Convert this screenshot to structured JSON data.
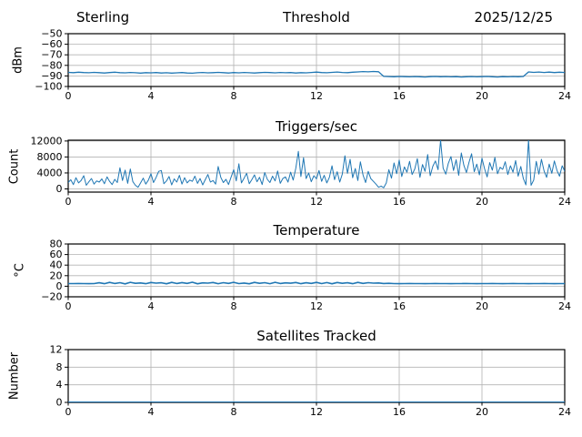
{
  "figure": {
    "background": "#ffffff",
    "line_color": "#1f77b4",
    "grid_color": "#b3b3b3",
    "spine_color": "#000000"
  },
  "chart_data": [
    {
      "type": "line",
      "title_left": "Sterling",
      "title": "Threshold",
      "title_right": "2025/12/25",
      "ylabel": "dBm",
      "xlabel": "",
      "xlim": [
        0,
        24
      ],
      "ylim": [
        -100,
        -50
      ],
      "xticks": [
        0,
        4,
        8,
        12,
        16,
        20,
        24
      ],
      "yticks": [
        -100,
        -90,
        -80,
        -70,
        -60,
        -50
      ],
      "grid": true,
      "line_color": "#1f77b4",
      "x_start": 0,
      "x_step": 0.25,
      "y": [
        -86.6,
        -86.9,
        -86.5,
        -86.8,
        -87.0,
        -86.6,
        -86.9,
        -87.2,
        -86.8,
        -86.5,
        -86.9,
        -87.1,
        -86.7,
        -87.0,
        -87.3,
        -86.9,
        -87.1,
        -86.8,
        -87.2,
        -87.0,
        -87.3,
        -87.1,
        -86.8,
        -87.2,
        -87.4,
        -87.0,
        -86.7,
        -87.1,
        -86.9,
        -86.6,
        -86.9,
        -87.2,
        -86.8,
        -87.1,
        -86.7,
        -87.0,
        -87.2,
        -86.9,
        -86.6,
        -86.8,
        -87.1,
        -86.7,
        -87.0,
        -86.8,
        -87.2,
        -86.9,
        -87.1,
        -86.7,
        -86.4,
        -86.8,
        -87.0,
        -86.6,
        -86.3,
        -86.7,
        -86.9,
        -86.5,
        -86.2,
        -85.9,
        -86.1,
        -85.8,
        -86.0,
        -90.4,
        -90.6,
        -90.8,
        -90.5,
        -90.7,
        -90.9,
        -90.6,
        -90.8,
        -91.0,
        -90.7,
        -90.5,
        -90.8,
        -90.6,
        -90.9,
        -90.7,
        -91.0,
        -90.8,
        -90.6,
        -90.9,
        -90.7,
        -90.5,
        -90.8,
        -91.0,
        -90.7,
        -90.9,
        -90.6,
        -90.8,
        -90.5,
        -86.2,
        -86.6,
        -86.3,
        -86.7,
        -86.4,
        -86.8,
        -86.5,
        -86.7
      ]
    },
    {
      "type": "line",
      "title": "Triggers/sec",
      "ylabel": "Count",
      "xlabel": "",
      "xlim": [
        0,
        24
      ],
      "ylim": [
        -800,
        12200
      ],
      "xticks": [
        0,
        4,
        8,
        12,
        16,
        20,
        24
      ],
      "yticks": [
        0,
        4000,
        8000,
        12000
      ],
      "grid": true,
      "line_color": "#1f77b4",
      "x_start": 0,
      "x_step": 0.125,
      "y": [
        1600,
        2300,
        1100,
        2800,
        1500,
        2100,
        3300,
        900,
        1800,
        2600,
        1200,
        2000,
        1700,
        2500,
        1300,
        3000,
        1900,
        1100,
        2400,
        1600,
        5300,
        2100,
        4700,
        1400,
        5000,
        1800,
        900,
        400,
        1500,
        2700,
        1200,
        2200,
        3800,
        1600,
        2900,
        4400,
        4600,
        1300,
        2000,
        3100,
        1000,
        2500,
        1700,
        3400,
        1200,
        2800,
        1500,
        2200,
        1900,
        3200,
        1400,
        2600,
        1000,
        2300,
        3600,
        1700,
        2100,
        1200,
        5600,
        2900,
        1600,
        2400,
        1100,
        3000,
        4800,
        2000,
        6300,
        1500,
        2700,
        3900,
        1300,
        2300,
        3500,
        1800,
        2900,
        1100,
        4100,
        2400,
        1600,
        3200,
        2000,
        4500,
        1400,
        2600,
        3000,
        1700,
        4200,
        2200,
        5200,
        9400,
        3100,
        7800,
        2600,
        4000,
        1800,
        3300,
        2500,
        4600,
        1900,
        3400,
        1500,
        2900,
        5800,
        2300,
        4300,
        1700,
        3700,
        8300,
        3900,
        7400,
        2800,
        5100,
        2100,
        6800,
        3500,
        1600,
        4400,
        2600,
        1900,
        1200,
        400,
        700,
        300,
        1500,
        4800,
        2700,
        6500,
        3800,
        7200,
        3100,
        5500,
        4200,
        6900,
        3600,
        5000,
        7600,
        2900,
        6100,
        4400,
        8600,
        3300,
        5700,
        7000,
        4800,
        12200,
        5200,
        3700,
        6400,
        8100,
        4600,
        7300,
        3400,
        9000,
        5900,
        4100,
        6700,
        8800,
        4300,
        6200,
        3500,
        7700,
        5100,
        3000,
        6600,
        4700,
        7900,
        3800,
        5400,
        4900,
        6800,
        3600,
        5800,
        4200,
        7100,
        3200,
        5600,
        2600,
        1000,
        12300,
        900,
        2200,
        6900,
        3700,
        7400,
        4500,
        2900,
        6200,
        3900,
        7000,
        4600,
        3200,
        5800,
        4400
      ]
    },
    {
      "type": "line",
      "title": "Temperature",
      "ylabel": "°C",
      "xlabel": "",
      "xlim": [
        0,
        24
      ],
      "ylim": [
        -20,
        80
      ],
      "xticks": [
        0,
        4,
        8,
        12,
        16,
        20,
        24
      ],
      "yticks": [
        -20,
        0,
        20,
        40,
        60,
        80
      ],
      "grid": true,
      "line_color": "#1f77b4",
      "x_start": 0,
      "x_step": 0.25,
      "y": [
        5.0,
        5.0,
        5.1,
        5.0,
        4.9,
        5.0,
        6.5,
        4.8,
        7.2,
        5.2,
        6.8,
        4.5,
        7.5,
        5.5,
        6.2,
        4.9,
        7.0,
        5.8,
        6.6,
        4.6,
        7.3,
        5.1,
        6.9,
        5.4,
        7.6,
        4.7,
        6.4,
        5.9,
        7.1,
        4.8,
        6.7,
        5.3,
        7.4,
        5.0,
        6.1,
        4.6,
        7.2,
        5.6,
        6.8,
        4.9,
        7.5,
        5.2,
        6.3,
        5.7,
        7.0,
        4.8,
        6.6,
        5.4,
        7.3,
        5.0,
        6.9,
        4.7,
        7.1,
        5.5,
        6.5,
        4.9,
        7.2,
        5.3,
        6.7,
        5.8,
        6.2,
        5.1,
        5.6,
        5.0,
        4.9,
        5.0,
        5.1,
        5.0,
        5.0,
        4.9,
        5.0,
        5.1,
        5.0,
        5.0,
        4.9,
        5.0,
        5.0,
        5.1,
        5.0,
        4.9,
        5.0,
        5.0,
        5.1,
        5.0,
        4.9,
        5.0,
        5.1,
        5.0,
        5.0,
        4.9,
        5.0,
        5.0,
        5.1,
        5.0,
        4.9,
        5.0,
        5.0
      ]
    },
    {
      "type": "line",
      "title": "Satellites Tracked",
      "ylabel": "Number",
      "xlabel": "",
      "xlim": [
        0,
        24
      ],
      "ylim": [
        0,
        12
      ],
      "xticks": [
        0,
        4,
        8,
        12,
        16,
        20,
        24
      ],
      "yticks": [
        0,
        4,
        8,
        12
      ],
      "grid": true,
      "line_color": "#1f77b4",
      "x_start": 0,
      "x_step": 24,
      "y": [
        0,
        0
      ]
    }
  ]
}
